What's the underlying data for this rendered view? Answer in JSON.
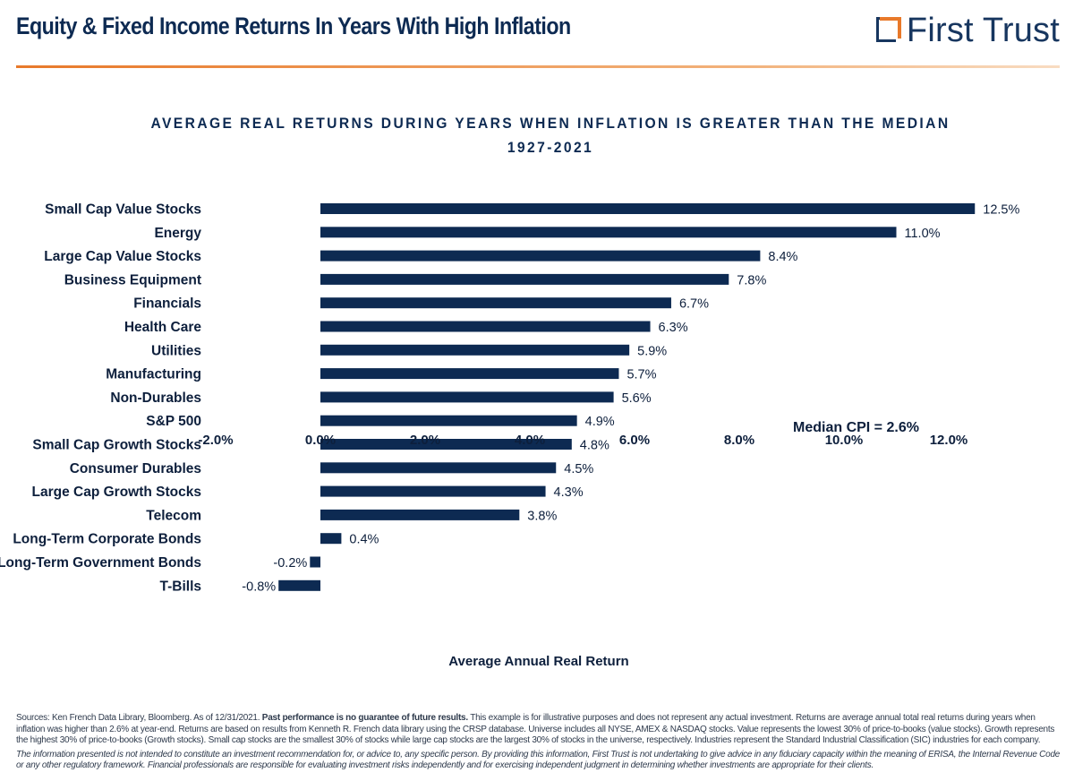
{
  "header": {
    "title": "Equity & Fixed Income Returns In Years With High Inflation",
    "logo_text": "First Trust"
  },
  "chart_data": {
    "type": "bar",
    "orientation": "horizontal",
    "title": "AVERAGE REAL RETURNS DURING YEARS WHEN INFLATION IS GREATER THAN THE MEDIAN",
    "subtitle": "1927-2021",
    "xlabel": "Average Annual Real Return",
    "ylabel": "",
    "categories": [
      "Small Cap Value Stocks",
      "Energy",
      "Large Cap Value Stocks",
      "Business Equipment",
      "Financials",
      "Health Care",
      "Utilities",
      "Manufacturing",
      "Non-Durables",
      "S&P 500",
      "Small Cap Growth Stocks",
      "Consumer Durables",
      "Large Cap Growth Stocks",
      "Telecom",
      "Long-Term Corporate Bonds",
      "Long-Term Government Bonds",
      "T-Bills"
    ],
    "values": [
      12.5,
      11.0,
      8.4,
      7.8,
      6.7,
      6.3,
      5.9,
      5.7,
      5.6,
      4.9,
      4.8,
      4.5,
      4.3,
      3.8,
      0.4,
      -0.2,
      -0.8
    ],
    "data_labels": [
      "12.5%",
      "11.0%",
      "8.4%",
      "7.8%",
      "6.7%",
      "6.3%",
      "5.9%",
      "5.7%",
      "5.6%",
      "4.9%",
      "4.8%",
      "4.5%",
      "4.3%",
      "3.8%",
      "0.4%",
      "-0.2%",
      "-0.8%"
    ],
    "xlim": [
      -2.0,
      12.0
    ],
    "x_ticks": [
      -2,
      0,
      2,
      4,
      6,
      8,
      10,
      12
    ],
    "x_tick_labels": [
      "-2.0%",
      "0.0%",
      "2.0%",
      "4.0%",
      "6.0%",
      "8.0%",
      "10.0%",
      "12.0%"
    ],
    "bar_color": "#0d2a52",
    "grid": false,
    "legend": "none",
    "annotation": "Median CPI = 2.6%"
  },
  "footnote": {
    "sources_lead": "Sources: Ken French Data Library, Bloomberg. As of 12/31/2021. ",
    "sources_bold": "Past performance is no guarantee of future results.",
    "sources_rest": " This example is for illustrative purposes and does not represent any actual investment. Returns are average annual total real returns during years when inflation was higher than 2.6% at year-end. Returns are based on results from Kenneth R. French data library using the CRSP database. Universe includes all NYSE, AMEX & NASDAQ stocks. Value represents the lowest 30% of price-to-books (value stocks). Growth represents the highest 30% of price-to-books (Growth stocks). Small cap stocks are the smallest 30% of stocks while large cap stocks are the largest 30% of stocks in the universe, respectively. Industries represent the Standard Industrial Classification (SIC) industries for each company.",
    "disclaimer": "The information presented is not intended to constitute an investment recommendation for, or advice to, any specific person. By providing this information, First Trust is not undertaking to give advice in any fiduciary capacity within the meaning of ERISA, the Internal Revenue Code or any other regulatory framework. Financial professionals are responsible for evaluating investment risks independently and for exercising independent judgment in determining whether investments are appropriate for their clients."
  }
}
